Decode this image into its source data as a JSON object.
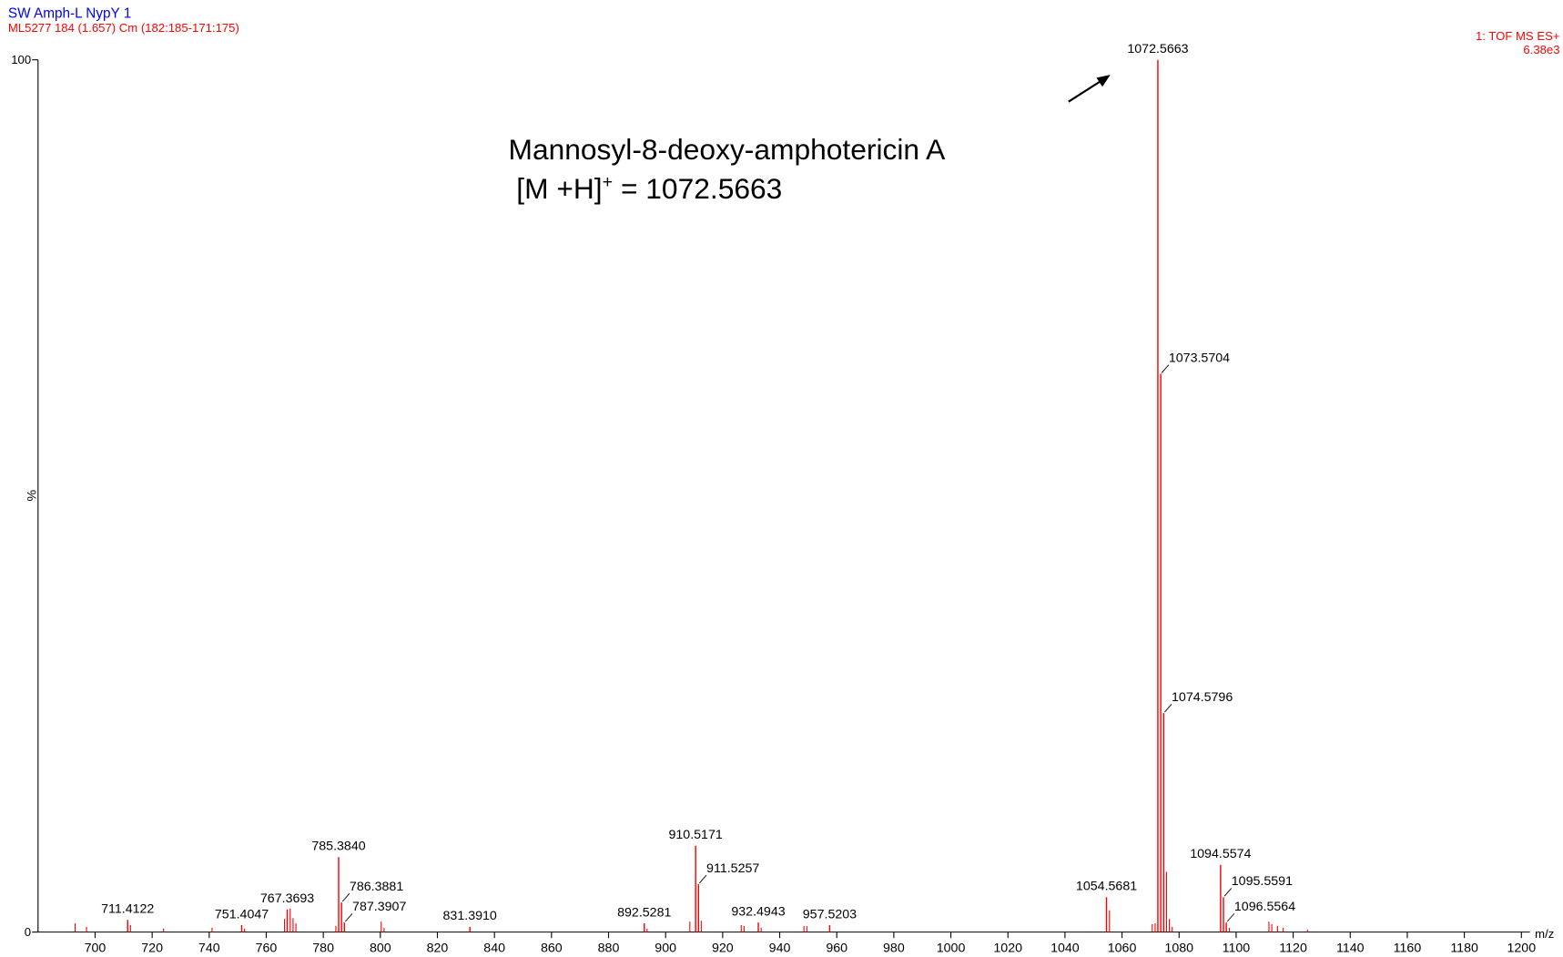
{
  "chart_data": {
    "type": "spectrum",
    "title": "SW Amph-L NypY 1",
    "subtitle": "ML5277 184 (1.657) Cm (182:185-171:175)",
    "mode": "1: TOF MS ES+",
    "scale": "6.38e3",
    "ylabel": "%",
    "xlabel": "m/z",
    "annotation": {
      "line1": "Mannosyl-8-deoxy-amphotericin A",
      "line2_pre": "[M +H]",
      "line2_sup": "+",
      "line2_post": " = 1072.5663"
    },
    "title_color": "#0000ff",
    "color": "#ff0000",
    "xlim": [
      680,
      1203
    ],
    "ylim": [
      0,
      100
    ],
    "yticks": [
      0,
      100
    ],
    "xticks": [
      700,
      720,
      740,
      760,
      780,
      800,
      820,
      840,
      860,
      880,
      900,
      920,
      940,
      960,
      980,
      1000,
      1020,
      1040,
      1060,
      1080,
      1100,
      1120,
      1140,
      1160,
      1180,
      1200
    ],
    "peaks": {
      "x": [
        711.4122,
        751.4047,
        767.3693,
        785.384,
        786.3881,
        787.3907,
        831.391,
        892.5281,
        910.5171,
        911.5257,
        932.4943,
        957.5203,
        1054.5681,
        1072.5663,
        1073.5704,
        1074.5796,
        1094.5574,
        1095.5591,
        1096.5564
      ],
      "x_labels": [
        "711.4122",
        "751.4047",
        "767.3693",
        "785.3840",
        "786.3881",
        "787.3907",
        "831.3910",
        "892.5281",
        "910.5171",
        "911.5257",
        "932.4943",
        "957.5203",
        "1054.5681",
        "1072.5663",
        "1073.5704",
        "1074.5796",
        "1094.5574",
        "1095.5591",
        "1096.5564"
      ],
      "values": [
        1.4,
        0.8,
        2.6,
        8.6,
        3.4,
        1.1,
        0.6,
        1.0,
        9.9,
        5.5,
        1.1,
        0.8,
        4.0,
        100,
        64,
        25.1,
        7.7,
        4.0,
        1.1
      ]
    },
    "minor_peaks": {
      "x": [
        693,
        697,
        712.4,
        724,
        741,
        752.4,
        766.4,
        768.4,
        769.4,
        770.4,
        784.4,
        800.3,
        801.3,
        893.5,
        908.5,
        912.5,
        926.5,
        927.5,
        933.5,
        948.5,
        949.5,
        1055.6,
        1070.6,
        1071.6,
        1075.6,
        1076.6,
        1077.6,
        1097.6,
        1111.5,
        1112.5,
        1114.5,
        1116.5,
        1125
      ],
      "values": [
        1.0,
        0.6,
        0.8,
        0.4,
        0.5,
        0.4,
        1.5,
        2.7,
        1.6,
        1.0,
        0.7,
        1.2,
        0.5,
        0.4,
        1.2,
        1.3,
        0.8,
        0.7,
        0.5,
        0.7,
        0.7,
        2.5,
        0.9,
        1.0,
        6.9,
        1.5,
        0.6,
        0.5,
        1.2,
        0.9,
        0.7,
        0.5,
        0.3
      ]
    }
  }
}
